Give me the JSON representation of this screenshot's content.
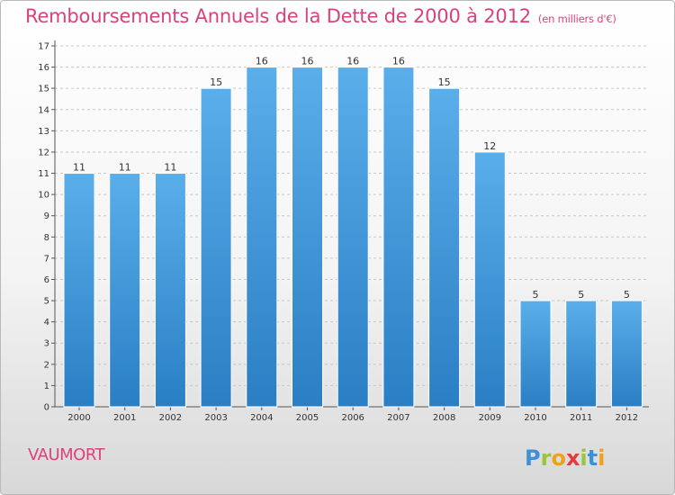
{
  "title": "Remboursements Annuels de la Dette de 2000 à 2012",
  "unit": "(en milliers d'€)",
  "commune": "VAUMORT",
  "logo_text": "Proxiti",
  "colors": {
    "title": "#d9437a",
    "bar_top": "#5aaeea",
    "bar_bottom": "#2a7fc4",
    "grid": "#c8c8c8"
  },
  "chart_data": {
    "type": "bar",
    "categories": [
      "2000",
      "2001",
      "2002",
      "2003",
      "2004",
      "2005",
      "2006",
      "2007",
      "2008",
      "2009",
      "2010",
      "2011",
      "2012"
    ],
    "values": [
      11,
      11,
      11,
      15,
      16,
      16,
      16,
      16,
      15,
      12,
      5,
      5,
      5
    ],
    "ylim": [
      0,
      17
    ],
    "yticks": [
      0,
      1,
      2,
      3,
      4,
      5,
      6,
      7,
      8,
      9,
      10,
      11,
      12,
      13,
      14,
      15,
      16,
      17
    ],
    "grid": true,
    "legend": "none"
  }
}
